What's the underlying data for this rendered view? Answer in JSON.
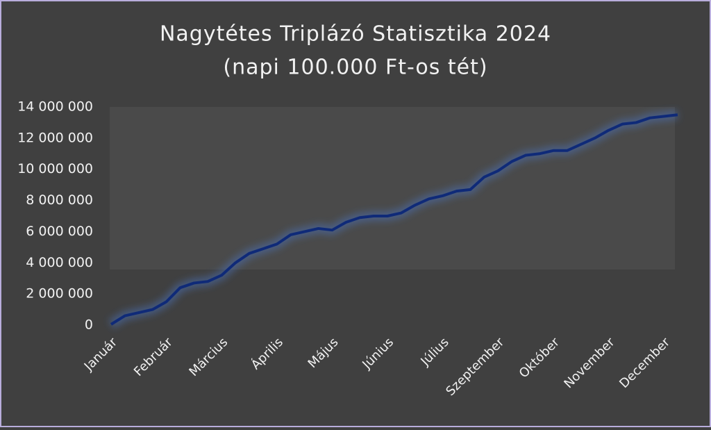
{
  "chart_data": {
    "type": "line",
    "title": "Nagytétes Triplázó Statisztika 2024",
    "subtitle": "(napi 100.000 Ft-os tét)",
    "categories": [
      "Január",
      null,
      null,
      null,
      "Február",
      null,
      null,
      null,
      "Március",
      null,
      null,
      null,
      "Április",
      null,
      null,
      null,
      "Május",
      null,
      null,
      null,
      "Június",
      null,
      null,
      null,
      "Július",
      null,
      null,
      null,
      "Szeptember",
      null,
      null,
      null,
      "Október",
      null,
      null,
      null,
      "November",
      null,
      null,
      null,
      "December",
      null
    ],
    "series": [
      {
        "name": "Nagytétes Triplázó",
        "color": "#0f2a78",
        "values": [
          50000,
          600000,
          800000,
          1000000,
          1500000,
          2400000,
          2700000,
          2800000,
          3200000,
          4000000,
          4600000,
          4900000,
          5200000,
          5800000,
          6000000,
          6200000,
          6100000,
          6600000,
          6900000,
          7000000,
          7000000,
          7200000,
          7700000,
          8100000,
          8300000,
          8600000,
          8700000,
          9500000,
          9900000,
          10500000,
          10900000,
          11000000,
          11200000,
          11200000,
          11600000,
          12000000,
          12500000,
          12900000,
          13000000,
          13300000,
          13400000,
          13500000
        ]
      }
    ],
    "ylim": [
      0,
      14000000
    ],
    "yticks": [
      0,
      {
        "value": 2000000,
        "label": "2 000 000"
      },
      {
        "value": 4000000,
        "label": "4 000 000"
      },
      {
        "value": 6000000,
        "label": "6 000 000"
      },
      {
        "value": 8000000,
        "label": "8 000 000"
      },
      {
        "value": 10000000,
        "label": "10 000 000"
      },
      {
        "value": 12000000,
        "label": "12 000 000"
      },
      {
        "value": 14000000,
        "label": "14 000 000"
      }
    ]
  }
}
